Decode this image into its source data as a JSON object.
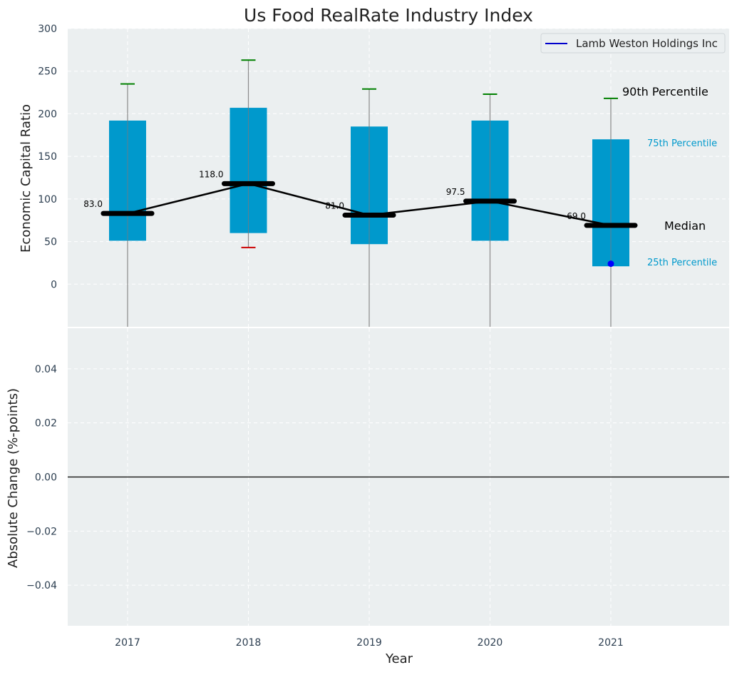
{
  "chart_data": {
    "type": "box",
    "title": "Us Food RealRate Industry Index",
    "xlabel": "Year",
    "categories": [
      "2017",
      "2018",
      "2019",
      "2020",
      "2021"
    ],
    "top": {
      "ylabel": "Economic Capital Ratio",
      "ylim": [
        -50,
        300
      ],
      "yticks": [
        "0",
        "50",
        "100",
        "150",
        "200",
        "250",
        "300"
      ],
      "p25": [
        51,
        60,
        47,
        51,
        21
      ],
      "p75": [
        192,
        207,
        185,
        192,
        170
      ],
      "p90": [
        235,
        263,
        229,
        223,
        218
      ],
      "p10": [
        -50,
        43,
        -50,
        -50,
        -50
      ],
      "median": [
        83,
        118,
        81,
        97.5,
        69
      ],
      "median_labels": [
        "83.0",
        "118.0",
        "81.0",
        "97.5",
        "69.0"
      ],
      "company_values": [
        null,
        null,
        null,
        null,
        24
      ],
      "legend": {
        "label": "Lamb Weston Holdings Inc",
        "position": "top-right"
      },
      "annotations": {
        "p90": "90th Percentile",
        "p75": "75th Percentile",
        "median": "Median",
        "p25": "25th Percentile"
      }
    },
    "bottom": {
      "ylabel": "Absolute Change (%-points)",
      "ylim": [
        -0.055,
        0.055
      ],
      "yticks": [
        "−0.04",
        "−0.02",
        "0.00",
        "0.02",
        "0.04"
      ],
      "values": []
    },
    "grid": true
  },
  "colors": {
    "box": "#0099cc",
    "median": "#000000",
    "whisker_top": "#008000",
    "whisker_bottom": "#cc0000",
    "company_point": "#0000ff",
    "panel_bg": "#ebeff0",
    "annotation_blue": "#0099cc"
  }
}
